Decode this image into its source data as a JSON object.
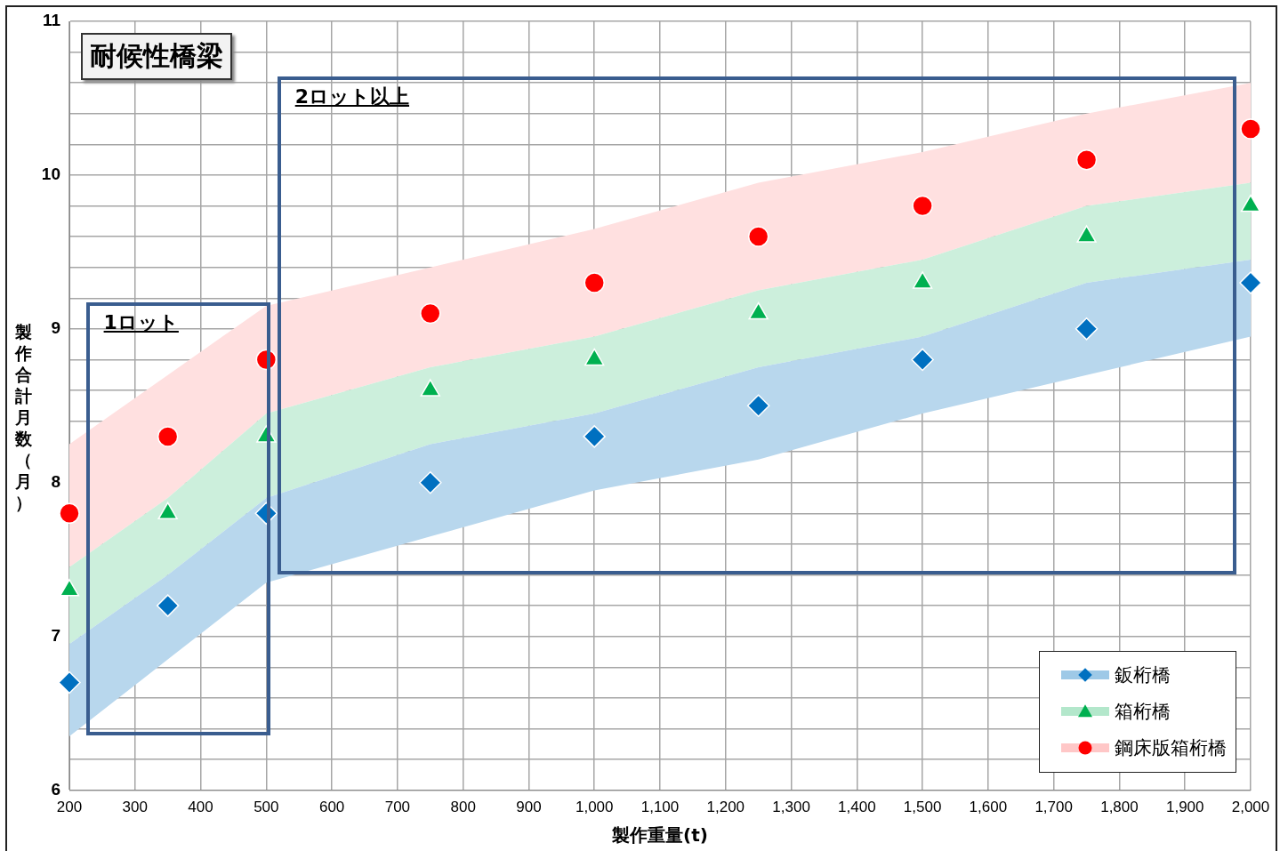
{
  "chart_data": {
    "type": "scatter",
    "title": "耐候性橋梁",
    "xlabel": "製作重量(t)",
    "ylabel": "製作合計月数（月）",
    "annotations": [
      "1ロット",
      "2ロット以上"
    ],
    "x": [
      200,
      350,
      500,
      750,
      1000,
      1250,
      1500,
      1750,
      2000
    ],
    "xlim": [
      200,
      2000
    ],
    "ylim": [
      6,
      11
    ],
    "xticks": [
      {
        "value": 200,
        "label": "200"
      },
      {
        "value": 300,
        "label": "300"
      },
      {
        "value": 400,
        "label": "400"
      },
      {
        "value": 500,
        "label": "500"
      },
      {
        "value": 600,
        "label": "600"
      },
      {
        "value": 700,
        "label": "700"
      },
      {
        "value": 800,
        "label": "800"
      },
      {
        "value": 900,
        "label": "900"
      },
      {
        "value": 1000,
        "label": "1,000"
      },
      {
        "value": 1100,
        "label": "1,100"
      },
      {
        "value": 1200,
        "label": "1,200"
      },
      {
        "value": 1300,
        "label": "1,300"
      },
      {
        "value": 1400,
        "label": "1,400"
      },
      {
        "value": 1500,
        "label": "1,500"
      },
      {
        "value": 1600,
        "label": "1,600"
      },
      {
        "value": 1700,
        "label": "1,700"
      },
      {
        "value": 1800,
        "label": "1,800"
      },
      {
        "value": 1900,
        "label": "1,900"
      },
      {
        "value": 2000,
        "label": "2,000"
      }
    ],
    "yticks": [
      6,
      {
        "value": 6.2,
        "label": null
      },
      {
        "value": 6.4,
        "label": null
      },
      {
        "value": 6.6,
        "label": null
      },
      {
        "value": 6.8,
        "label": null
      },
      7,
      {
        "value": 7.2,
        "label": null
      },
      {
        "value": 7.4,
        "label": null
      },
      {
        "value": 7.6,
        "label": null
      },
      {
        "value": 7.8,
        "label": null
      },
      8,
      {
        "value": 8.2,
        "label": null
      },
      {
        "value": 8.4,
        "label": null
      },
      {
        "value": 8.6,
        "label": null
      },
      {
        "value": 8.8,
        "label": null
      },
      9,
      {
        "value": 9.2,
        "label": null
      },
      {
        "value": 9.4,
        "label": null
      },
      {
        "value": 9.6,
        "label": null
      },
      {
        "value": 9.8,
        "label": null
      },
      10,
      {
        "value": 10.2,
        "label": null
      },
      {
        "value": 10.4,
        "label": null
      },
      {
        "value": 10.6,
        "label": null
      },
      {
        "value": 10.8,
        "label": null
      },
      11
    ],
    "grid": true,
    "legend": "bottom right",
    "series": [
      {
        "name": "鈑桁橋",
        "color": "#0070c0",
        "marker": "diamond",
        "values": [
          6.7,
          7.2,
          7.8,
          8.0,
          8.3,
          8.5,
          8.8,
          9.0,
          9.3
        ],
        "lower": [
          6.35,
          6.85,
          7.35,
          7.65,
          7.95,
          8.15,
          8.45,
          8.7,
          8.95
        ],
        "upper": [
          6.95,
          7.4,
          7.9,
          8.25,
          8.45,
          8.75,
          8.95,
          9.3,
          9.45
        ]
      },
      {
        "name": "箱桁橋",
        "color": "#00b050",
        "marker": "triangle",
        "values": [
          7.3,
          7.8,
          8.3,
          8.6,
          8.8,
          9.1,
          9.3,
          9.6,
          9.8
        ],
        "lower": [
          6.95,
          7.4,
          7.9,
          8.25,
          8.45,
          8.75,
          8.95,
          9.3,
          9.45
        ],
        "upper": [
          7.45,
          7.9,
          8.45,
          8.75,
          8.95,
          9.25,
          9.45,
          9.8,
          9.95
        ]
      },
      {
        "name": "鋼床版箱桁橋",
        "color": "#ff0000",
        "marker": "circle",
        "values": [
          7.8,
          8.3,
          8.8,
          9.1,
          9.3,
          9.6,
          9.8,
          10.1,
          10.3
        ],
        "lower": [
          7.45,
          7.9,
          8.45,
          8.75,
          8.95,
          9.25,
          9.45,
          9.8,
          9.95
        ],
        "upper": [
          8.25,
          8.7,
          9.15,
          9.4,
          9.65,
          9.95,
          10.15,
          10.4,
          10.6
        ]
      }
    ]
  }
}
